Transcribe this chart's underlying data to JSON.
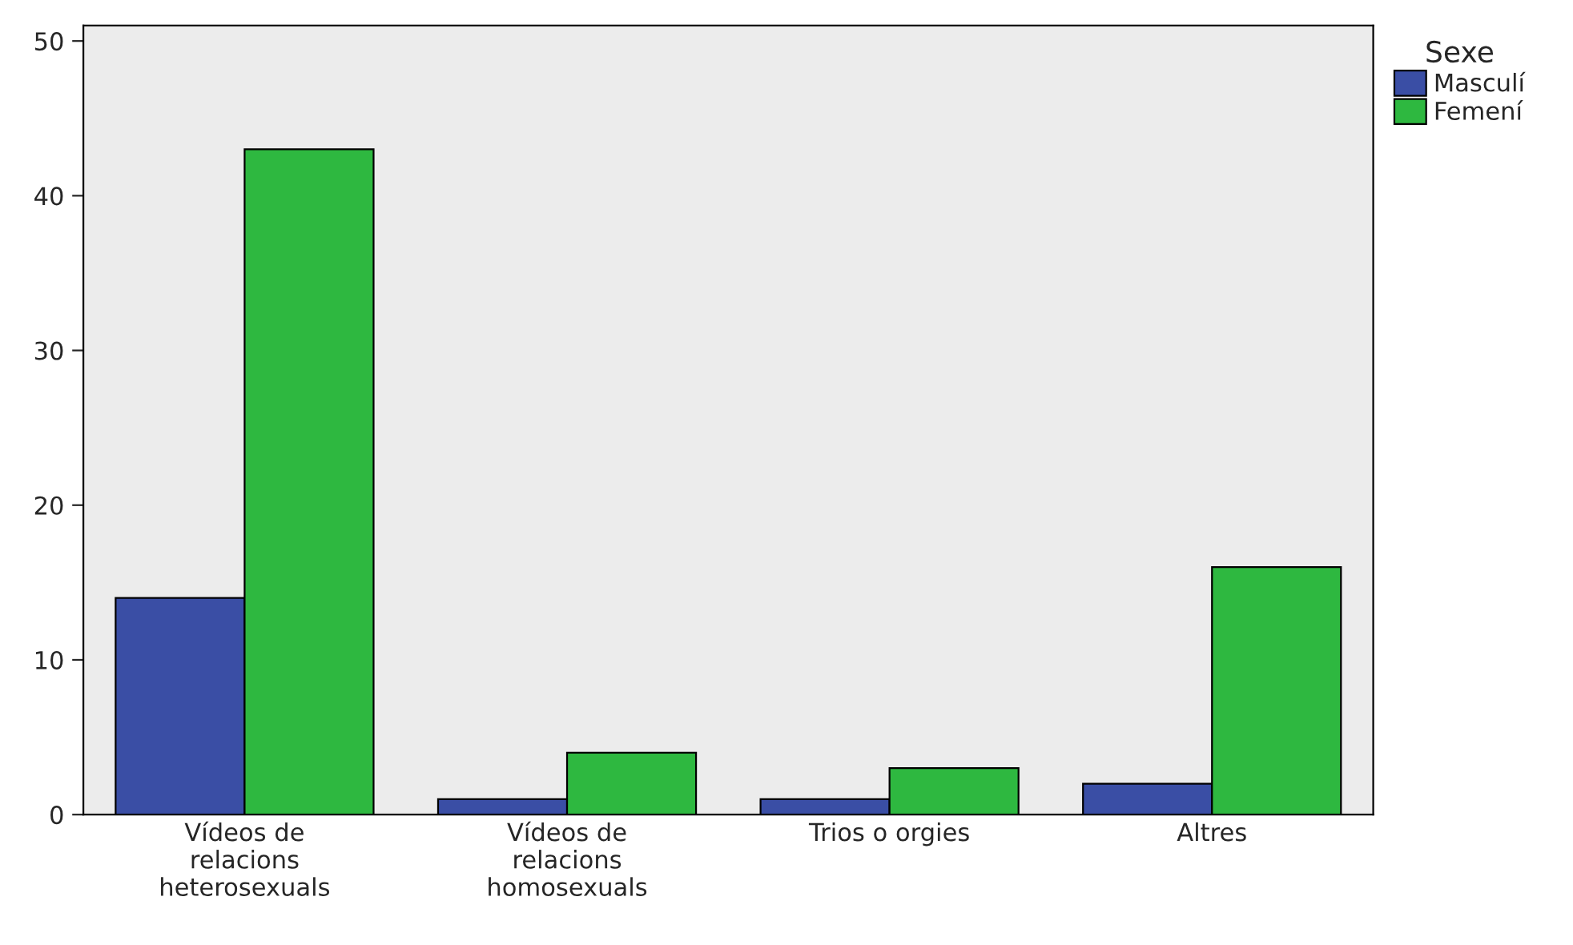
{
  "chart_data": {
    "type": "bar",
    "categories": [
      "Vídeos de\nrelacions\nheterosexuals",
      "Vídeos de\nrelacions\nhomosexuals",
      "Trios o orgies",
      "Altres"
    ],
    "series": [
      {
        "name": "Masculí",
        "color": "#3a4ea5",
        "values": [
          14,
          1,
          1,
          2
        ]
      },
      {
        "name": "Femení",
        "color": "#2eb840",
        "values": [
          43,
          4,
          3,
          16
        ]
      }
    ],
    "legend_title": "Sexe",
    "legend": "top right",
    "ylim": [
      0,
      51
    ],
    "yticks": [
      0,
      10,
      20,
      30,
      40,
      50
    ],
    "grid": false
  }
}
